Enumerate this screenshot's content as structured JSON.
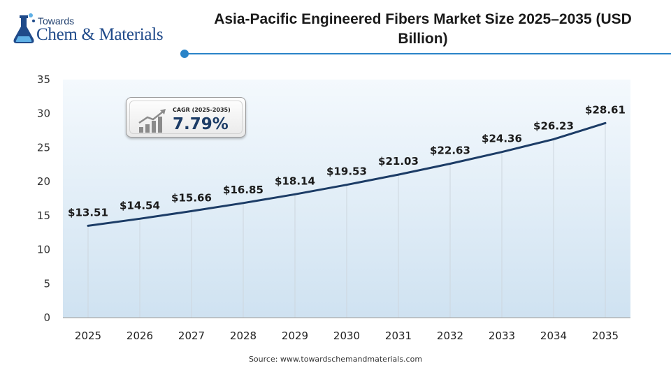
{
  "brand": {
    "line1": "Towards",
    "line2": "Chem & Materials"
  },
  "source": "Source: www.towardschemandmaterials.com",
  "cagr": {
    "label": "CAGR (2025-2035)",
    "value": "7.79%"
  },
  "colors": {
    "line": "#1c3c66",
    "accent": "#2a84c8",
    "area_top": "#f4f9fd",
    "area_bottom": "#cfe2f1",
    "grid": "#cdd6de"
  },
  "chart_data": {
    "type": "line",
    "title": "Asia-Pacific Engineered Fibers Market Size 2025–2035 (USD Billion)",
    "xlabel": "",
    "ylabel": "",
    "categories": [
      "2025",
      "2026",
      "2027",
      "2028",
      "2029",
      "2030",
      "2031",
      "2032",
      "2033",
      "2034",
      "2035"
    ],
    "series": [
      {
        "values": [
          13.51,
          14.54,
          15.66,
          16.85,
          18.14,
          19.53,
          21.03,
          22.63,
          24.36,
          26.23,
          28.61
        ]
      }
    ],
    "data_labels": [
      "$13.51",
      "$14.54",
      "$15.66",
      "$16.85",
      "$18.14",
      "$19.53",
      "$21.03",
      "$22.63",
      "$24.36",
      "$26.23",
      "$28.61"
    ],
    "yticks": [
      "0",
      "5",
      "10",
      "15",
      "20",
      "25",
      "30",
      "35"
    ],
    "ylim": [
      0,
      35
    ],
    "grid": "vertical",
    "legend": "none"
  }
}
